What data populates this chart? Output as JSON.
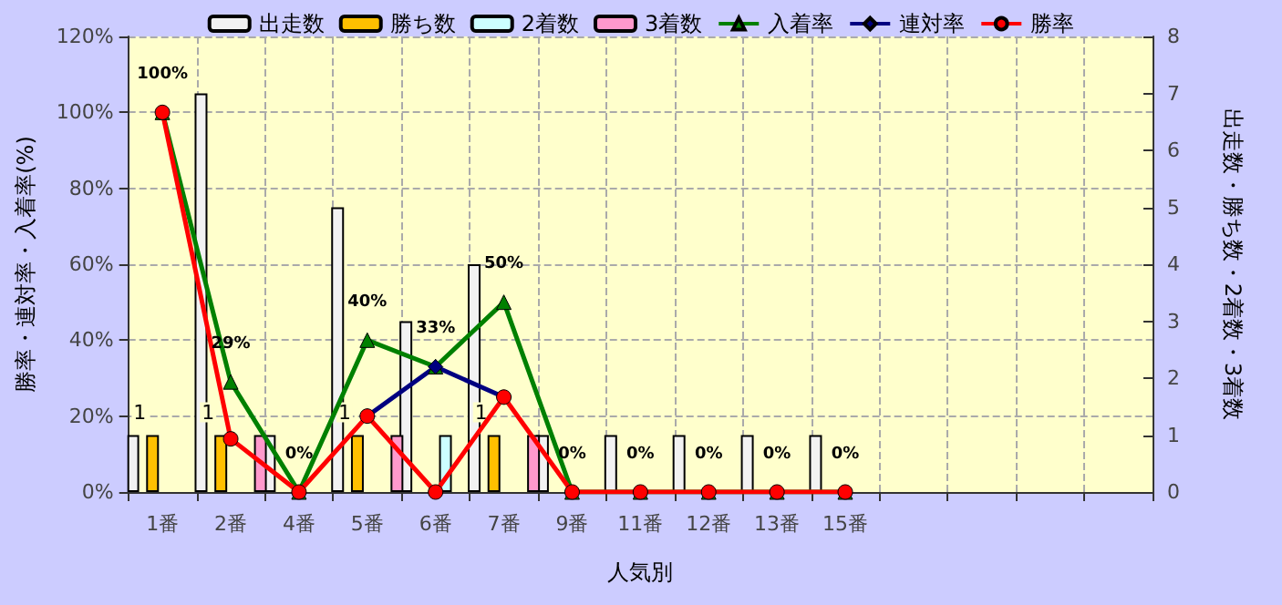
{
  "chart_data": {
    "type": "bar",
    "xlabel": "人気別",
    "ylabel": "勝率・連対率・入着率(%)",
    "y2label": "出走数・勝ち数・2着数・3着数",
    "categories": [
      "1番",
      "2番",
      "4番",
      "5番",
      "6番",
      "7番",
      "9番",
      "11番",
      "12番",
      "13番",
      "15番",
      null,
      null,
      null,
      null
    ],
    "series": [
      {
        "name": "出走数",
        "axis": "y2",
        "color": "#f2f2f2",
        "values": [
          1,
          7,
          1,
          5,
          3,
          4,
          1,
          1,
          1,
          1,
          1,
          null,
          null,
          null,
          null
        ]
      },
      {
        "name": "勝ち数",
        "axis": "y2",
        "color": "#ffc000",
        "values": [
          1,
          1,
          null,
          1,
          null,
          1,
          null,
          null,
          null,
          null,
          null,
          null,
          null,
          null,
          null
        ],
        "value_labels": [
          "1",
          "1",
          null,
          "1",
          null,
          "1",
          null,
          null,
          null,
          null,
          null,
          null,
          null,
          null,
          null
        ]
      },
      {
        "name": "2着数",
        "axis": "y2",
        "color": "#ccffff",
        "values": [
          null,
          null,
          null,
          null,
          1,
          null,
          null,
          null,
          null,
          null,
          null,
          null,
          null,
          null,
          null
        ]
      },
      {
        "name": "3着数",
        "axis": "y2",
        "color": "#ff99cc",
        "values": [
          null,
          1,
          null,
          1,
          null,
          1,
          null,
          null,
          null,
          null,
          null,
          null,
          null,
          null,
          null
        ]
      },
      {
        "name": "入着率",
        "type": "line",
        "marker": "triangle",
        "color": "#008000",
        "values": [
          100,
          29,
          0,
          40,
          33,
          50,
          0,
          0,
          0,
          0,
          0,
          null,
          null,
          null,
          null
        ],
        "value_labels": [
          "100%",
          "29%",
          "0%",
          "40%",
          "33%",
          "50%",
          "0%",
          "0%",
          "0%",
          "0%",
          "0%",
          null,
          null,
          null,
          null
        ]
      },
      {
        "name": "連対率",
        "type": "line",
        "marker": "diamond",
        "color": "#000080",
        "values": [
          null,
          null,
          null,
          20,
          33,
          25,
          null,
          null,
          null,
          null,
          null,
          null,
          null,
          null,
          null
        ]
      },
      {
        "name": "勝率",
        "type": "line",
        "marker": "circle",
        "color": "#ff0000",
        "values": [
          100,
          14,
          0,
          20,
          0,
          25,
          0,
          0,
          0,
          0,
          0,
          null,
          null,
          null,
          null
        ]
      }
    ],
    "ylim": [
      0,
      120
    ],
    "yticks": [
      {
        "value": 0,
        "label": "0%"
      },
      {
        "value": 20,
        "label": "20%"
      },
      {
        "value": 40,
        "label": "40%"
      },
      {
        "value": 60,
        "label": "60%"
      },
      {
        "value": 80,
        "label": "80%"
      },
      {
        "value": 100,
        "label": "100%"
      },
      {
        "value": 120,
        "label": "120%"
      }
    ],
    "y2lim": [
      0,
      8
    ],
    "y2ticks": [
      0,
      1,
      2,
      3,
      4,
      5,
      6,
      7,
      8
    ],
    "grid": true,
    "legend": "top"
  }
}
